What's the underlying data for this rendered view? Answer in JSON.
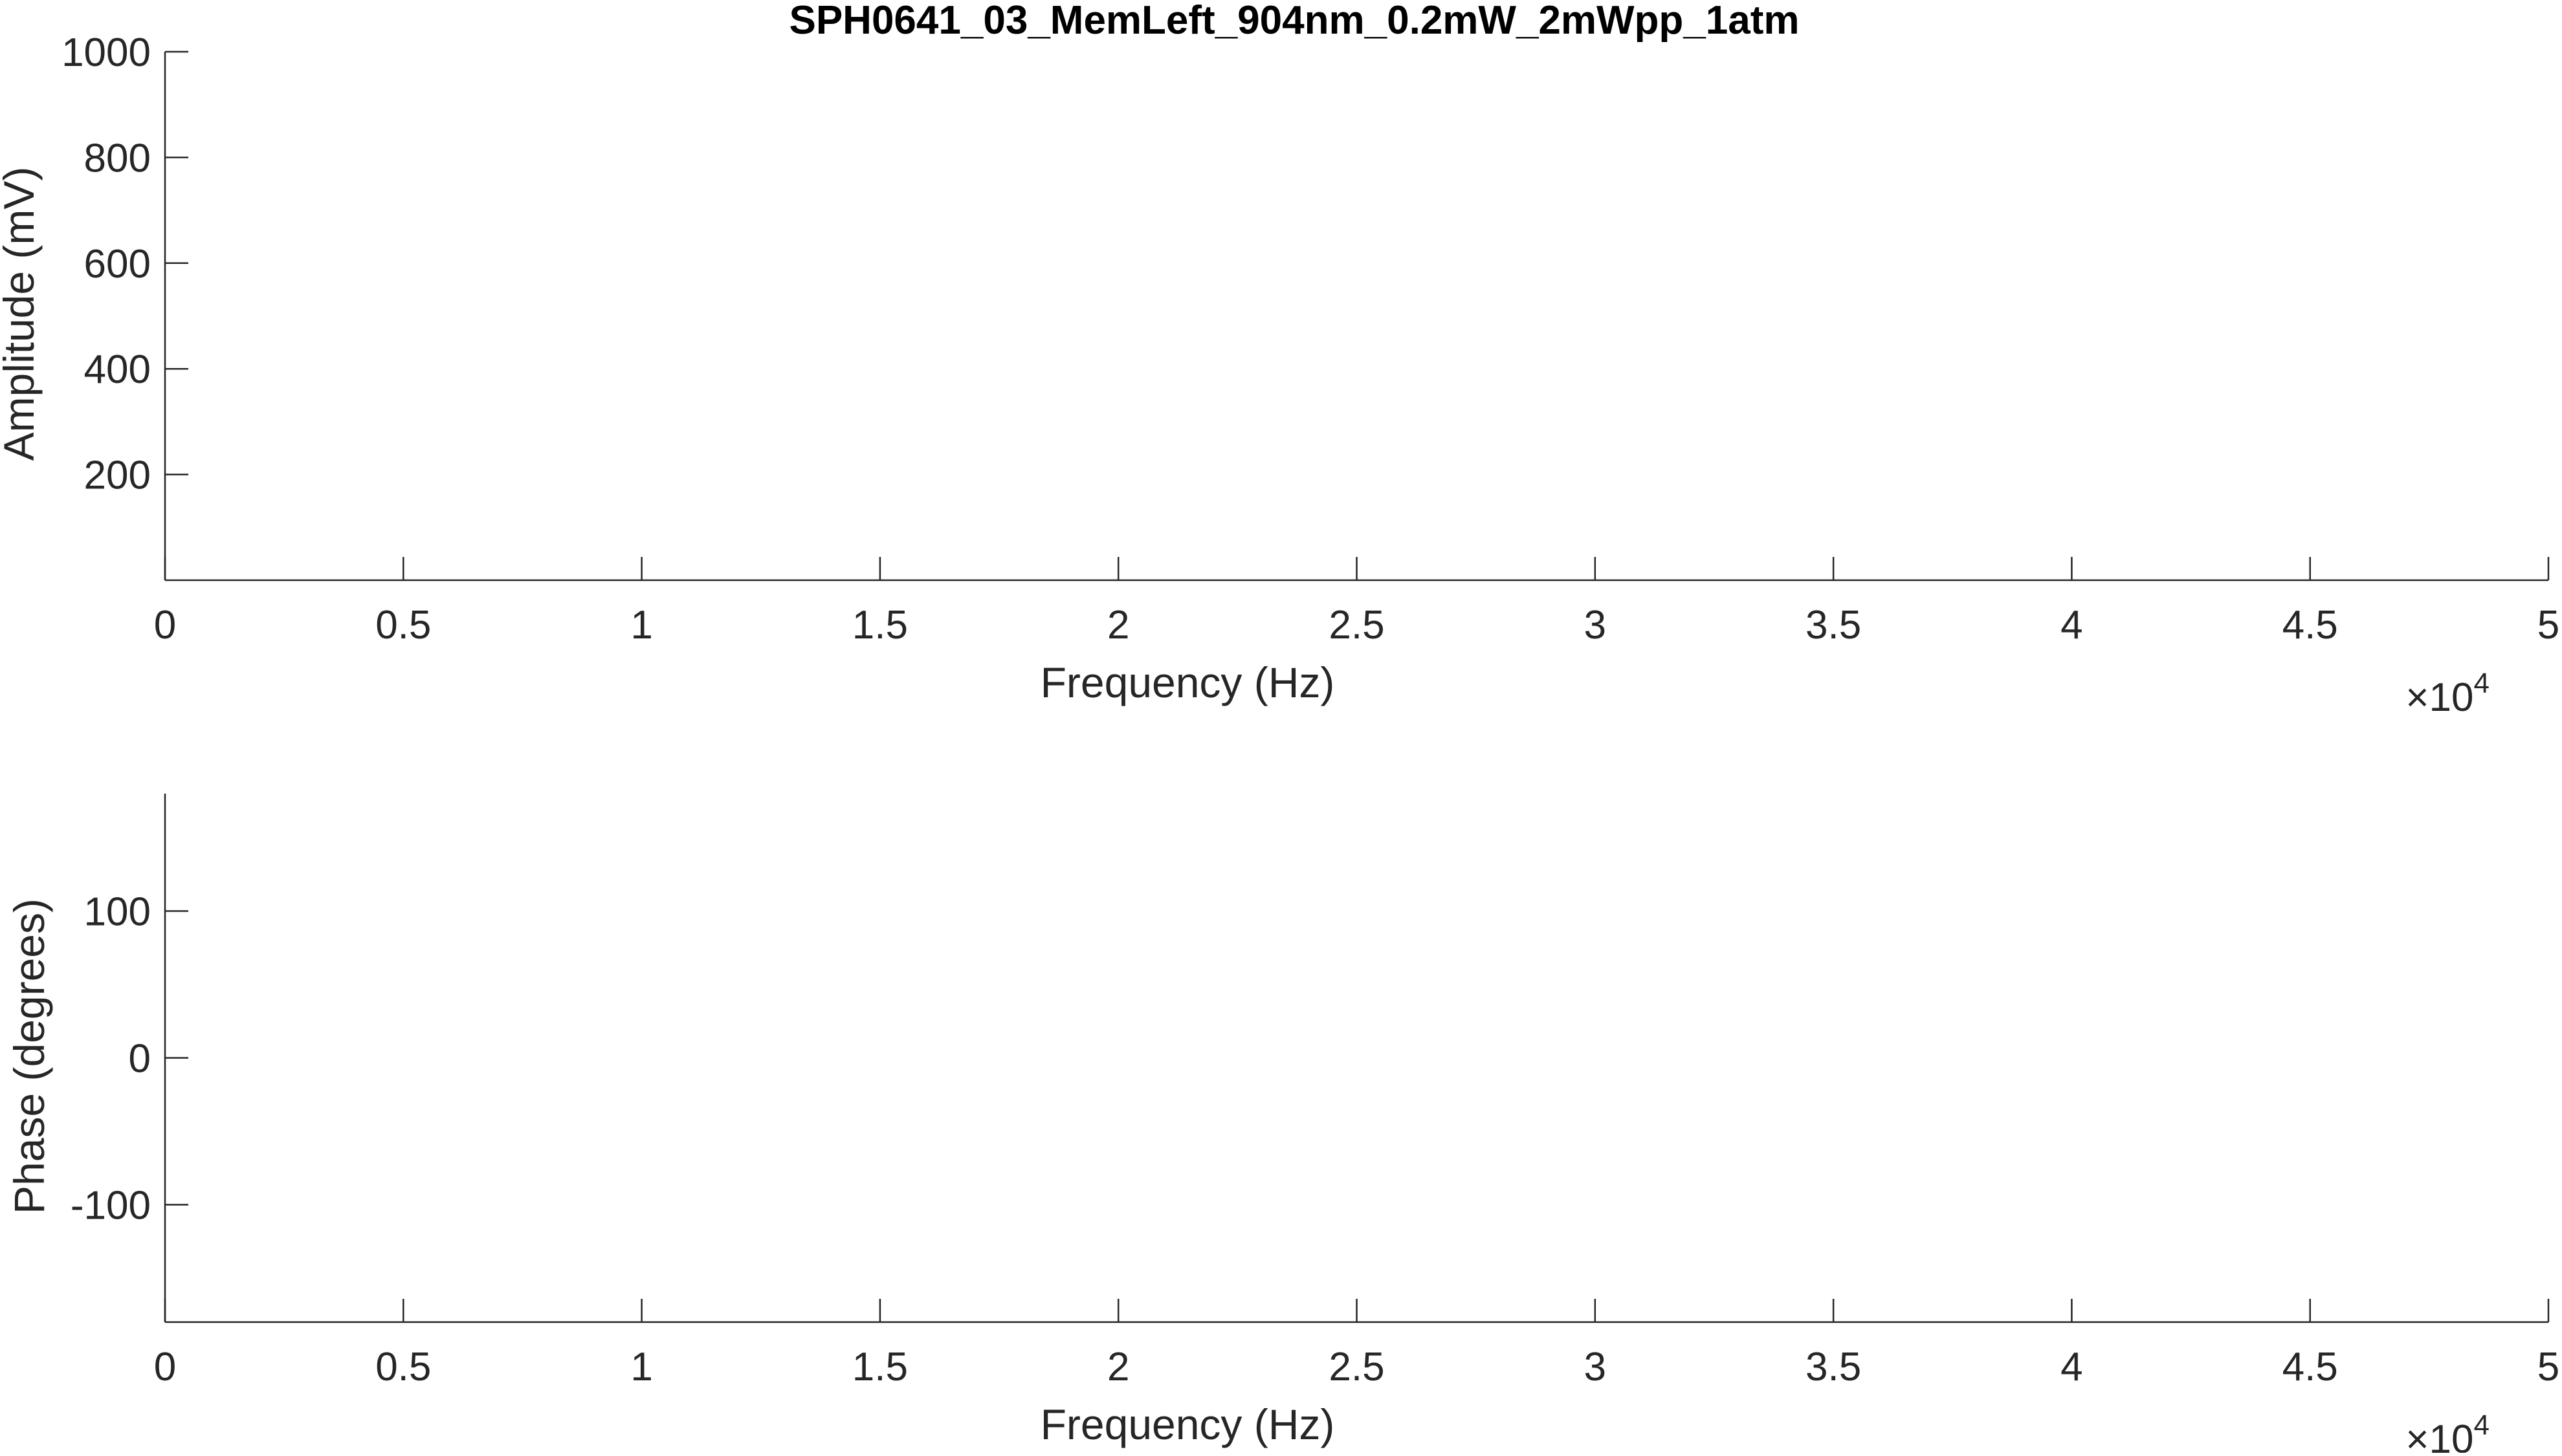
{
  "chart_data": [
    {
      "type": "line",
      "title": "SPH0641_03_MemLeft_904nm_0.2mW_2mWpp_1atm",
      "xlabel": "Frequency (Hz)",
      "ylabel": "Amplitude (mV)",
      "xlim": [
        0,
        50000
      ],
      "ylim": [
        0,
        1000
      ],
      "x_exponent_label": "×10",
      "x_exponent_power": "4",
      "x_ticks": [
        0,
        5000,
        10000,
        15000,
        20000,
        25000,
        30000,
        35000,
        40000,
        45000,
        50000
      ],
      "x_tick_labels": [
        "0",
        "0.5",
        "1",
        "1.5",
        "2",
        "2.5",
        "3",
        "3.5",
        "4",
        "4.5",
        "5"
      ],
      "y_ticks": [
        200,
        400,
        600,
        800,
        1000
      ],
      "y_tick_labels": [
        "200",
        "400",
        "600",
        "800",
        "1000"
      ],
      "grid": false,
      "series": []
    },
    {
      "type": "line",
      "title": "",
      "xlabel": "Frequency (Hz)",
      "ylabel": "Phase (degrees)",
      "xlim": [
        0,
        50000
      ],
      "ylim": [
        -180,
        180
      ],
      "x_exponent_label": "×10",
      "x_exponent_power": "4",
      "x_ticks": [
        0,
        5000,
        10000,
        15000,
        20000,
        25000,
        30000,
        35000,
        40000,
        45000,
        50000
      ],
      "x_tick_labels": [
        "0",
        "0.5",
        "1",
        "1.5",
        "2",
        "2.5",
        "3",
        "3.5",
        "4",
        "4.5",
        "5"
      ],
      "y_ticks": [
        -100,
        0,
        100
      ],
      "y_tick_labels": [
        "-100",
        "0",
        "100"
      ],
      "grid": false,
      "series": []
    }
  ]
}
